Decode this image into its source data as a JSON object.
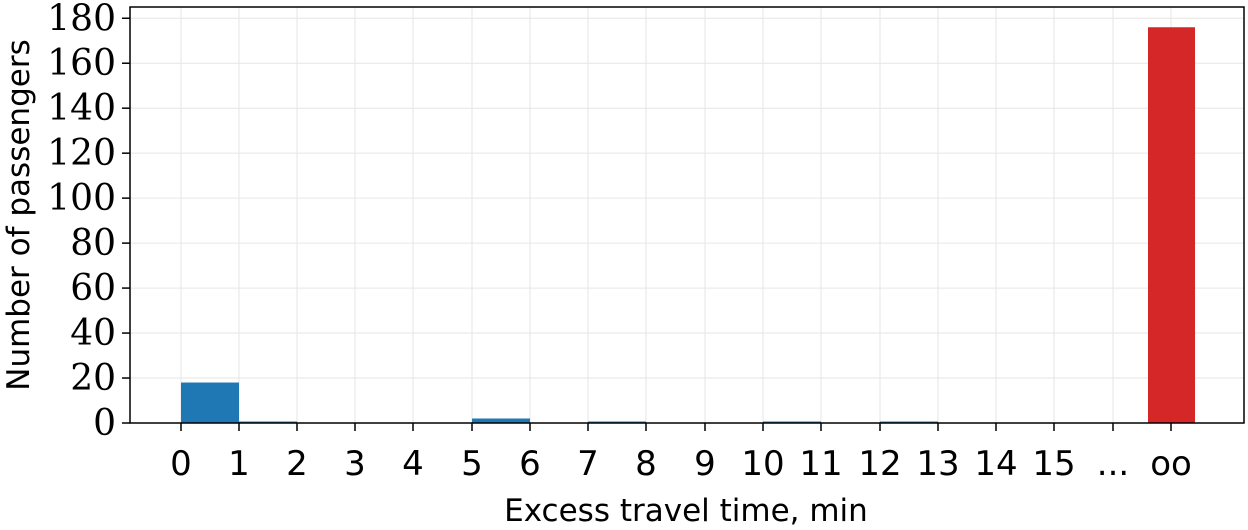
{
  "chart_data": {
    "type": "bar",
    "xlabel": "Excess travel time, min",
    "ylabel": "Number of passengers",
    "ylim": [
      0,
      185
    ],
    "yticks": [
      0,
      20,
      40,
      60,
      80,
      100,
      120,
      140,
      160,
      180
    ],
    "xticks": [
      "0",
      "1",
      "2",
      "3",
      "4",
      "5",
      "6",
      "7",
      "8",
      "9",
      "10",
      "11",
      "12",
      "13",
      "14",
      "15",
      "...",
      "oo"
    ],
    "grid": true,
    "colors": {
      "normal": "#1f77b4",
      "infinite": "#d62728"
    },
    "bars": [
      {
        "from": "0",
        "to": "1",
        "value": 18
      },
      {
        "from": "1",
        "to": "2",
        "value": 0.5
      },
      {
        "from": "5",
        "to": "6",
        "value": 2
      },
      {
        "from": "7",
        "to": "8",
        "value": 0.5
      },
      {
        "from": "10",
        "to": "11",
        "value": 0.5
      },
      {
        "from": "12",
        "to": "13",
        "value": 0.5
      },
      {
        "from": "oo",
        "to": "oo",
        "value": 176,
        "highlight": true
      }
    ]
  }
}
